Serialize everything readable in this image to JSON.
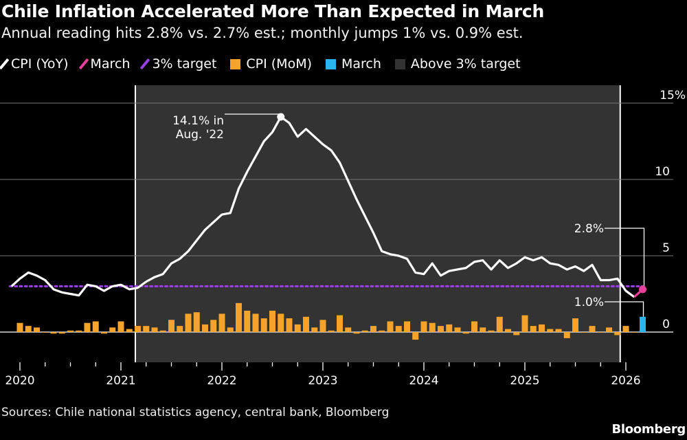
{
  "title": "Chile Inflation Accelerated More Than Expected in March",
  "subtitle": "Annual reading hits 2.8% vs. 2.7% est.; monthly jumps 1% vs. 0.9% est.",
  "legend": [
    {
      "label": "CPI (YoY)",
      "color": "#ffffff",
      "shape": "slash"
    },
    {
      "label": "March",
      "color": "#e8409a",
      "shape": "slash"
    },
    {
      "label": "3% target",
      "color": "#9b3fe6",
      "shape": "slash"
    },
    {
      "label": "CPI (MoM)",
      "color": "#f5a32a",
      "shape": "box"
    },
    {
      "label": "March",
      "color": "#2ab4ee",
      "shape": "box"
    },
    {
      "label": "Above 3% target",
      "color": "#333333",
      "shape": "box"
    }
  ],
  "source": "Sources: Chile national statistics agency, central bank, Bloomberg",
  "brand": "Bloomberg",
  "chart_data": {
    "type": "line+bar",
    "xlabel": "",
    "ylabel": "",
    "ylim": [
      -1,
      15
    ],
    "yticks": [
      "15%",
      "10",
      "5",
      "0"
    ],
    "ytick_values": [
      15,
      10,
      5,
      0
    ],
    "xticks": [
      "2020",
      "2021",
      "2022",
      "2023",
      "2024",
      "2025",
      "2026"
    ],
    "grid": true,
    "target": 3,
    "shaded_region": {
      "label": "Above 3% target",
      "start": "2021-03",
      "end": "2025-12"
    },
    "annotations": [
      {
        "text_line1": "14.1% in",
        "text_line2": "Aug. '22",
        "date": "2022-08",
        "value": 14.1
      },
      {
        "text": "2.8%",
        "date": "2026-03",
        "value": 2.8
      },
      {
        "text": "1.0%",
        "date": "2026-03",
        "value": 1.0
      }
    ],
    "series": [
      {
        "name": "CPI (YoY)",
        "kind": "line",
        "start": "2019-12",
        "values": [
          3.0,
          3.5,
          3.9,
          3.7,
          3.4,
          2.8,
          2.6,
          2.5,
          2.4,
          3.1,
          3.0,
          2.7,
          3.0,
          3.1,
          2.8,
          2.9,
          3.3,
          3.6,
          3.8,
          4.5,
          4.8,
          5.3,
          6.0,
          6.7,
          7.2,
          7.7,
          7.8,
          9.4,
          10.5,
          11.5,
          12.5,
          13.1,
          14.1,
          13.7,
          12.8,
          13.3,
          12.8,
          12.3,
          11.9,
          11.1,
          9.9,
          8.7,
          7.6,
          6.5,
          5.3,
          5.1,
          5.0,
          4.8,
          3.9,
          3.8,
          4.5,
          3.7,
          4.0,
          4.1,
          4.2,
          4.6,
          4.7,
          4.1,
          4.7,
          4.2,
          4.5,
          4.9,
          4.7,
          4.9,
          4.5,
          4.4,
          4.1,
          4.3,
          4.0,
          4.4,
          3.4,
          3.4,
          3.5,
          2.7,
          2.3,
          2.8
        ]
      },
      {
        "name": "CPI (MoM)",
        "kind": "bar",
        "start": "2020-01",
        "values": [
          0.6,
          0.4,
          0.3,
          0.0,
          -0.1,
          -0.1,
          0.1,
          0.1,
          0.6,
          0.7,
          -0.1,
          0.3,
          0.7,
          0.2,
          0.4,
          0.4,
          0.3,
          0.1,
          0.8,
          0.4,
          1.2,
          1.3,
          0.5,
          0.8,
          1.2,
          0.3,
          1.9,
          1.4,
          1.2,
          0.9,
          1.4,
          1.2,
          0.9,
          0.5,
          1.0,
          0.3,
          0.8,
          0.1,
          1.1,
          0.3,
          -0.1,
          0.1,
          0.4,
          0.1,
          0.7,
          0.4,
          0.7,
          -0.5,
          0.7,
          0.6,
          0.4,
          0.5,
          0.3,
          -0.1,
          0.7,
          0.3,
          0.1,
          1.0,
          0.2,
          -0.2,
          1.1,
          0.4,
          0.5,
          0.2,
          0.2,
          -0.4,
          0.9,
          0.0,
          0.4,
          0.0,
          0.3,
          -0.2,
          0.4,
          0.0,
          1.0
        ]
      }
    ],
    "highlight": {
      "date": "2026-03",
      "yoy": 2.8,
      "mom": 1.0
    }
  }
}
